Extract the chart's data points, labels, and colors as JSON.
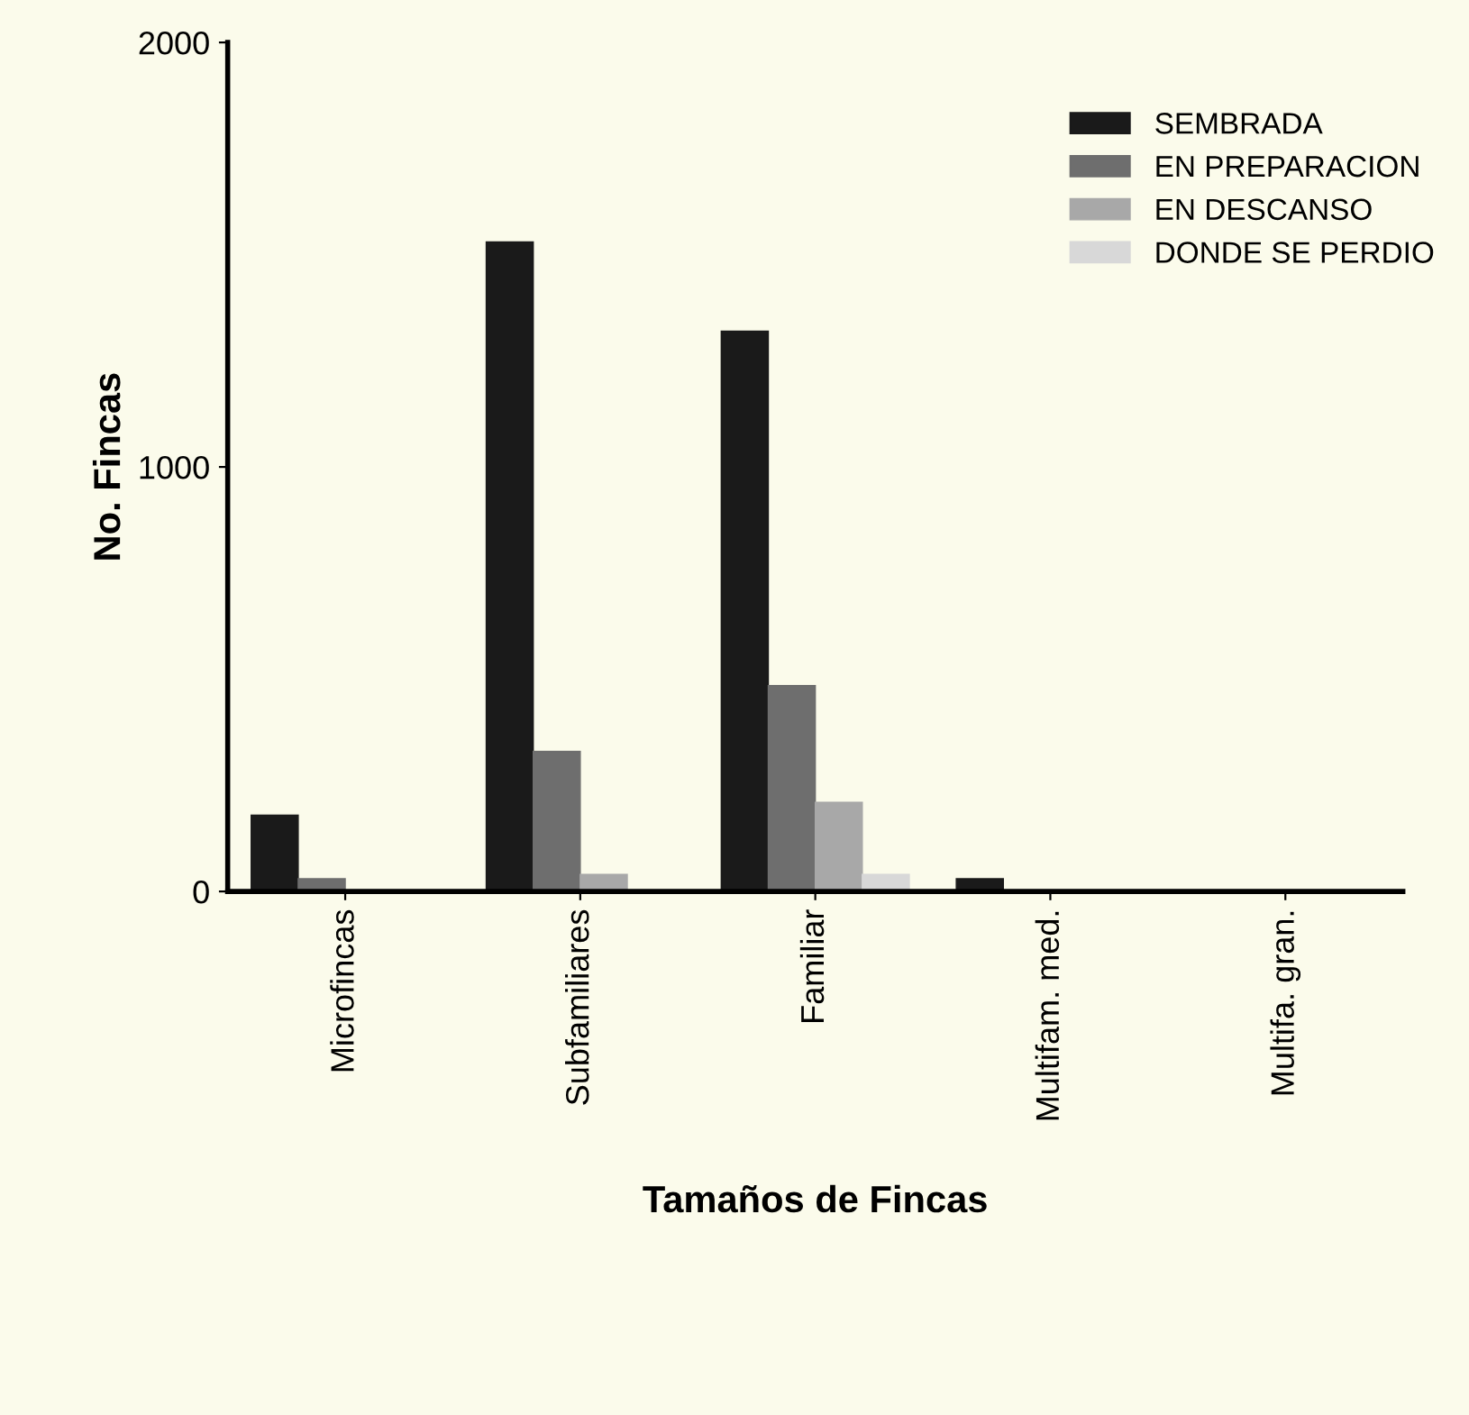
{
  "chart_data": {
    "type": "bar",
    "xlabel": "Tamaños de Fincas",
    "ylabel": "No. Fincas",
    "categories": [
      "Microfincas",
      "Subfamiliares",
      "Familiar",
      "Multifam. med.",
      "Multifa. gran."
    ],
    "series": [
      {
        "name": "SEMBRADA",
        "color": "#1a1a1a",
        "values": [
          180,
          1530,
          1320,
          30,
          0
        ]
      },
      {
        "name": "EN PREPARACION",
        "color": "#6e6e6e",
        "values": [
          30,
          330,
          485,
          null,
          0
        ]
      },
      {
        "name": "EN DESCANSO",
        "color": "#a8a8a8",
        "values": [
          null,
          40,
          210,
          0,
          0
        ]
      },
      {
        "name": "DONDE SE PERDIO",
        "color": "#d8d8d8",
        "values": [
          null,
          null,
          40,
          0,
          0
        ]
      }
    ],
    "ylim": [
      0,
      2000
    ],
    "yticks": [
      0,
      1000,
      2000
    ],
    "grid": false,
    "legend": "top right"
  }
}
